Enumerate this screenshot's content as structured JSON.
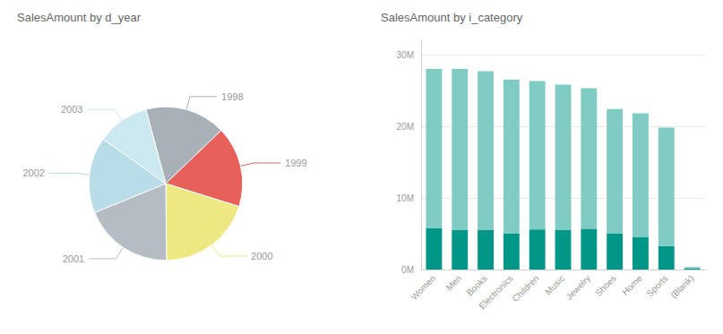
{
  "chart_data": [
    {
      "type": "pie",
      "title": "SalesAmount by d_year",
      "categories": [
        "1998",
        "1999",
        "2000",
        "2001",
        "2002",
        "2003"
      ],
      "values": [
        17,
        17,
        20,
        19,
        16,
        11
      ],
      "colors": [
        "#a8b0b8",
        "#e8605a",
        "#ede882",
        "#b5bcc4",
        "#b8dce8",
        "#cce8f0"
      ]
    },
    {
      "type": "bar",
      "title": "SalesAmount by i_category",
      "categories": [
        "Women",
        "Men",
        "Books",
        "Electronics",
        "Children",
        "Music",
        "Jewelry",
        "Shoes",
        "Home",
        "Sports",
        "(Blank)"
      ],
      "series": [
        {
          "color": "#009688",
          "values": [
            5800000,
            5500000,
            5500000,
            5000000,
            5600000,
            5500000,
            5700000,
            5000000,
            4500000,
            3300000,
            150000
          ]
        },
        {
          "color": "#80CBC4",
          "values": [
            22200000,
            22500000,
            22200000,
            21500000,
            20700000,
            20300000,
            19600000,
            17400000,
            17300000,
            16500000,
            200000
          ]
        }
      ],
      "stacked": true,
      "ylim": [
        0,
        32000000
      ],
      "yticks": [
        {
          "value": 0,
          "label": "0M"
        },
        {
          "value": 10000000,
          "label": "10M"
        },
        {
          "value": 20000000,
          "label": "20M"
        },
        {
          "value": 30000000,
          "label": "30M"
        }
      ],
      "grid": true
    }
  ]
}
